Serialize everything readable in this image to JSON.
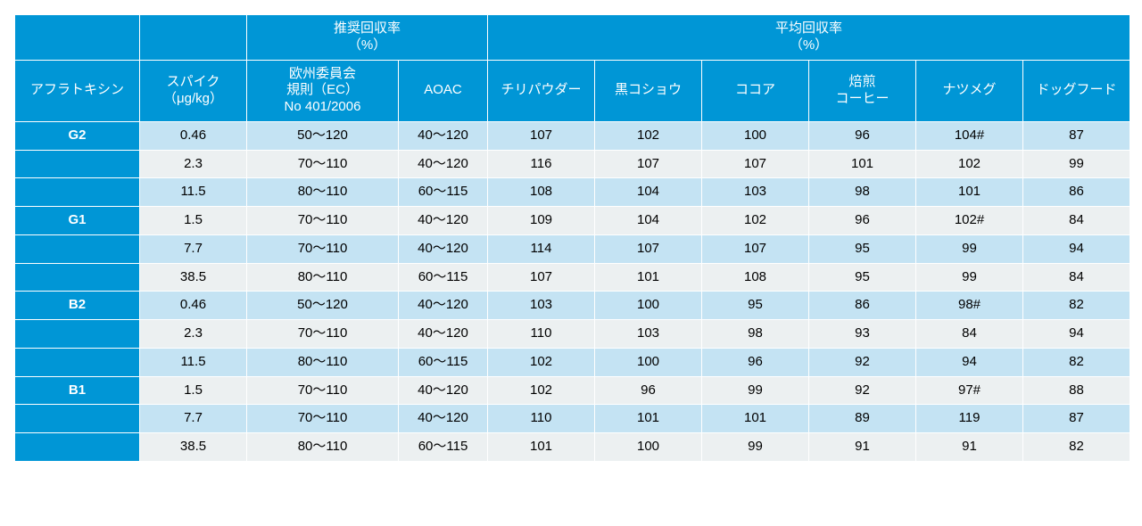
{
  "colors": {
    "header_bg": "#0096d6",
    "header_fg": "#ffffff",
    "row_light": "#c4e3f3",
    "row_gray": "#ecf0f1",
    "border": "#ffffff"
  },
  "header": {
    "group_recommended": "推奨回収率\n（%）",
    "group_mean": "平均回収率\n（%）",
    "col_aflatoxin": "アフラトキシン",
    "col_spike": "スパイク\n（μg/kg）",
    "col_ec": "欧州委員会\n規則（EC）\nNo 401/2006",
    "col_aoac": "AOAC",
    "samples": [
      "チリパウダー",
      "黒コショウ",
      "ココア",
      "焙煎\nコーヒー",
      "ナツメグ",
      "ドッグフード"
    ]
  },
  "rows": [
    {
      "label": "G2",
      "shade": "light",
      "spike": "0.46",
      "ec": "50～120",
      "aoac": "40～120",
      "vals": [
        "107",
        "102",
        "100",
        "96",
        "104#",
        "87"
      ]
    },
    {
      "label": "",
      "shade": "gray",
      "spike": "2.3",
      "ec": "70～110",
      "aoac": "40～120",
      "vals": [
        "116",
        "107",
        "107",
        "101",
        "102",
        "99"
      ]
    },
    {
      "label": "",
      "shade": "light",
      "spike": "11.5",
      "ec": "80～110",
      "aoac": "60～115",
      "vals": [
        "108",
        "104",
        "103",
        "98",
        "101",
        "86"
      ]
    },
    {
      "label": "G1",
      "shade": "gray",
      "spike": "1.5",
      "ec": "70～110",
      "aoac": "40～120",
      "vals": [
        "109",
        "104",
        "102",
        "96",
        "102#",
        "84"
      ]
    },
    {
      "label": "",
      "shade": "light",
      "spike": "7.7",
      "ec": "70～110",
      "aoac": "40～120",
      "vals": [
        "114",
        "107",
        "107",
        "95",
        "99",
        "94"
      ]
    },
    {
      "label": "",
      "shade": "gray",
      "spike": "38.5",
      "ec": "80～110",
      "aoac": "60～115",
      "vals": [
        "107",
        "101",
        "108",
        "95",
        "99",
        "84"
      ]
    },
    {
      "label": "B2",
      "shade": "light",
      "spike": "0.46",
      "ec": "50～120",
      "aoac": "40～120",
      "vals": [
        "103",
        "100",
        "95",
        "86",
        "98#",
        "82"
      ]
    },
    {
      "label": "",
      "shade": "gray",
      "spike": "2.3",
      "ec": "70～110",
      "aoac": "40～120",
      "vals": [
        "110",
        "103",
        "98",
        "93",
        "84",
        "94"
      ]
    },
    {
      "label": "",
      "shade": "light",
      "spike": "11.5",
      "ec": "80～110",
      "aoac": "60～115",
      "vals": [
        "102",
        "100",
        "96",
        "92",
        "94",
        "82"
      ]
    },
    {
      "label": "B1",
      "shade": "gray",
      "spike": "1.5",
      "ec": "70～110",
      "aoac": "40～120",
      "vals": [
        "102",
        "96",
        "99",
        "92",
        "97#",
        "88"
      ]
    },
    {
      "label": "",
      "shade": "light",
      "spike": "7.7",
      "ec": "70～110",
      "aoac": "40～120",
      "vals": [
        "110",
        "101",
        "101",
        "89",
        "119",
        "87"
      ]
    },
    {
      "label": "",
      "shade": "gray",
      "spike": "38.5",
      "ec": "80～110",
      "aoac": "60～115",
      "vals": [
        "101",
        "100",
        "99",
        "91",
        "91",
        "82"
      ]
    }
  ]
}
